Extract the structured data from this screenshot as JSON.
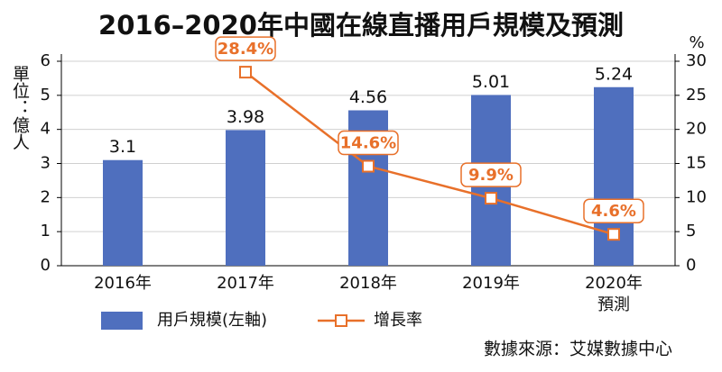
{
  "chart_data": {
    "type": "bar-line",
    "title": "2016–2020年中國在線直播用戶規模及預測",
    "y_label": "單位：億人",
    "y2_label": "%",
    "source": "數據來源：艾媒數據中心",
    "categories": [
      "2016年",
      "2017年",
      "2018年",
      "2019年",
      "2020年\n預測"
    ],
    "series": [
      {
        "name": "用戶規模(左軸)",
        "type": "bar",
        "color": "#4f6fbe",
        "values": [
          3.1,
          3.98,
          4.56,
          5.01,
          5.24
        ]
      },
      {
        "name": "增長率",
        "type": "line",
        "axis": "y2",
        "color": "#e8702a",
        "values": [
          null,
          28.4,
          14.6,
          9.9,
          4.6
        ],
        "value_labels": [
          null,
          "28.4%",
          "14.6%",
          "9.9%",
          "4.6%"
        ]
      }
    ],
    "ylim": [
      0,
      6
    ],
    "yticks": [
      0,
      1,
      2,
      3,
      4,
      5,
      6
    ],
    "y2lim": [
      0,
      30
    ],
    "y2ticks": [
      0,
      5,
      10,
      15,
      20,
      25,
      30
    ],
    "grid": true
  }
}
